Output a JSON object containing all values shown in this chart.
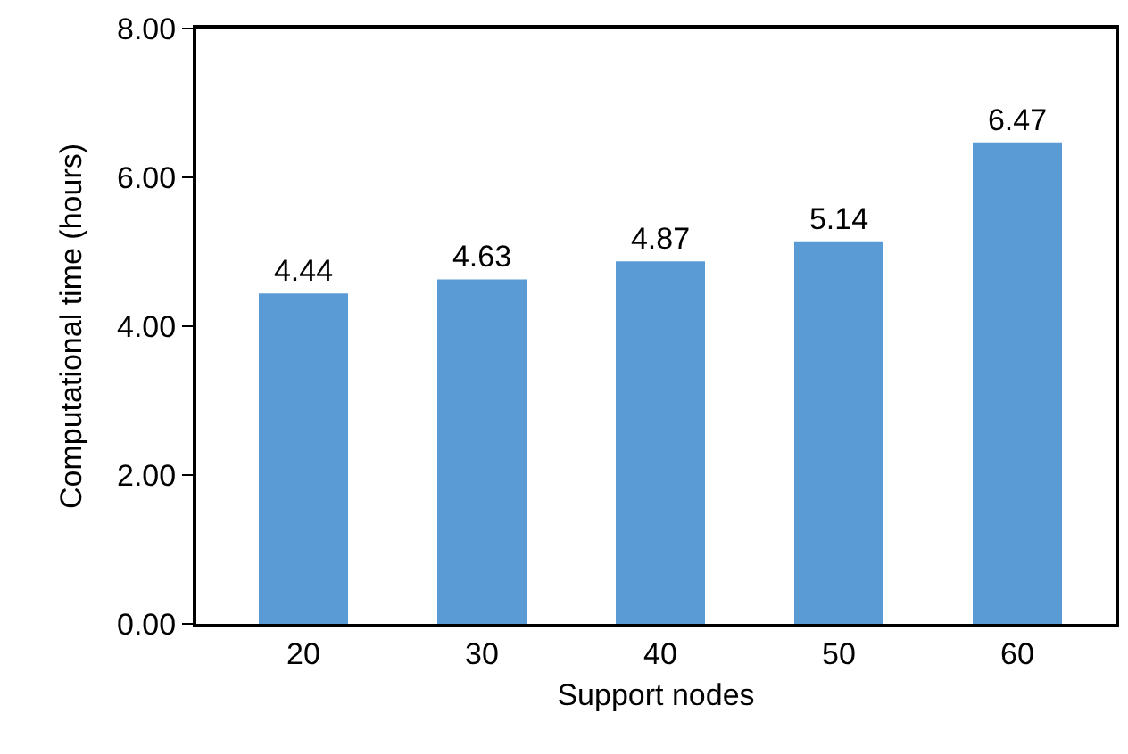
{
  "chart_data": {
    "type": "bar",
    "xlabel": "Support nodes",
    "ylabel": "Computational time (hours)",
    "categories": [
      "20",
      "30",
      "40",
      "50",
      "60"
    ],
    "values": [
      4.44,
      4.63,
      4.87,
      5.14,
      6.47
    ],
    "color": "#5b9bd5",
    "ylim": [
      0,
      8
    ],
    "yticks": [
      {
        "value": 0,
        "label": "0.00"
      },
      {
        "value": 2,
        "label": "2.00"
      },
      {
        "value": 4,
        "label": "4.00"
      },
      {
        "value": 6,
        "label": "6.00"
      },
      {
        "value": 8,
        "label": "8.00"
      }
    ],
    "data_labels": true
  }
}
